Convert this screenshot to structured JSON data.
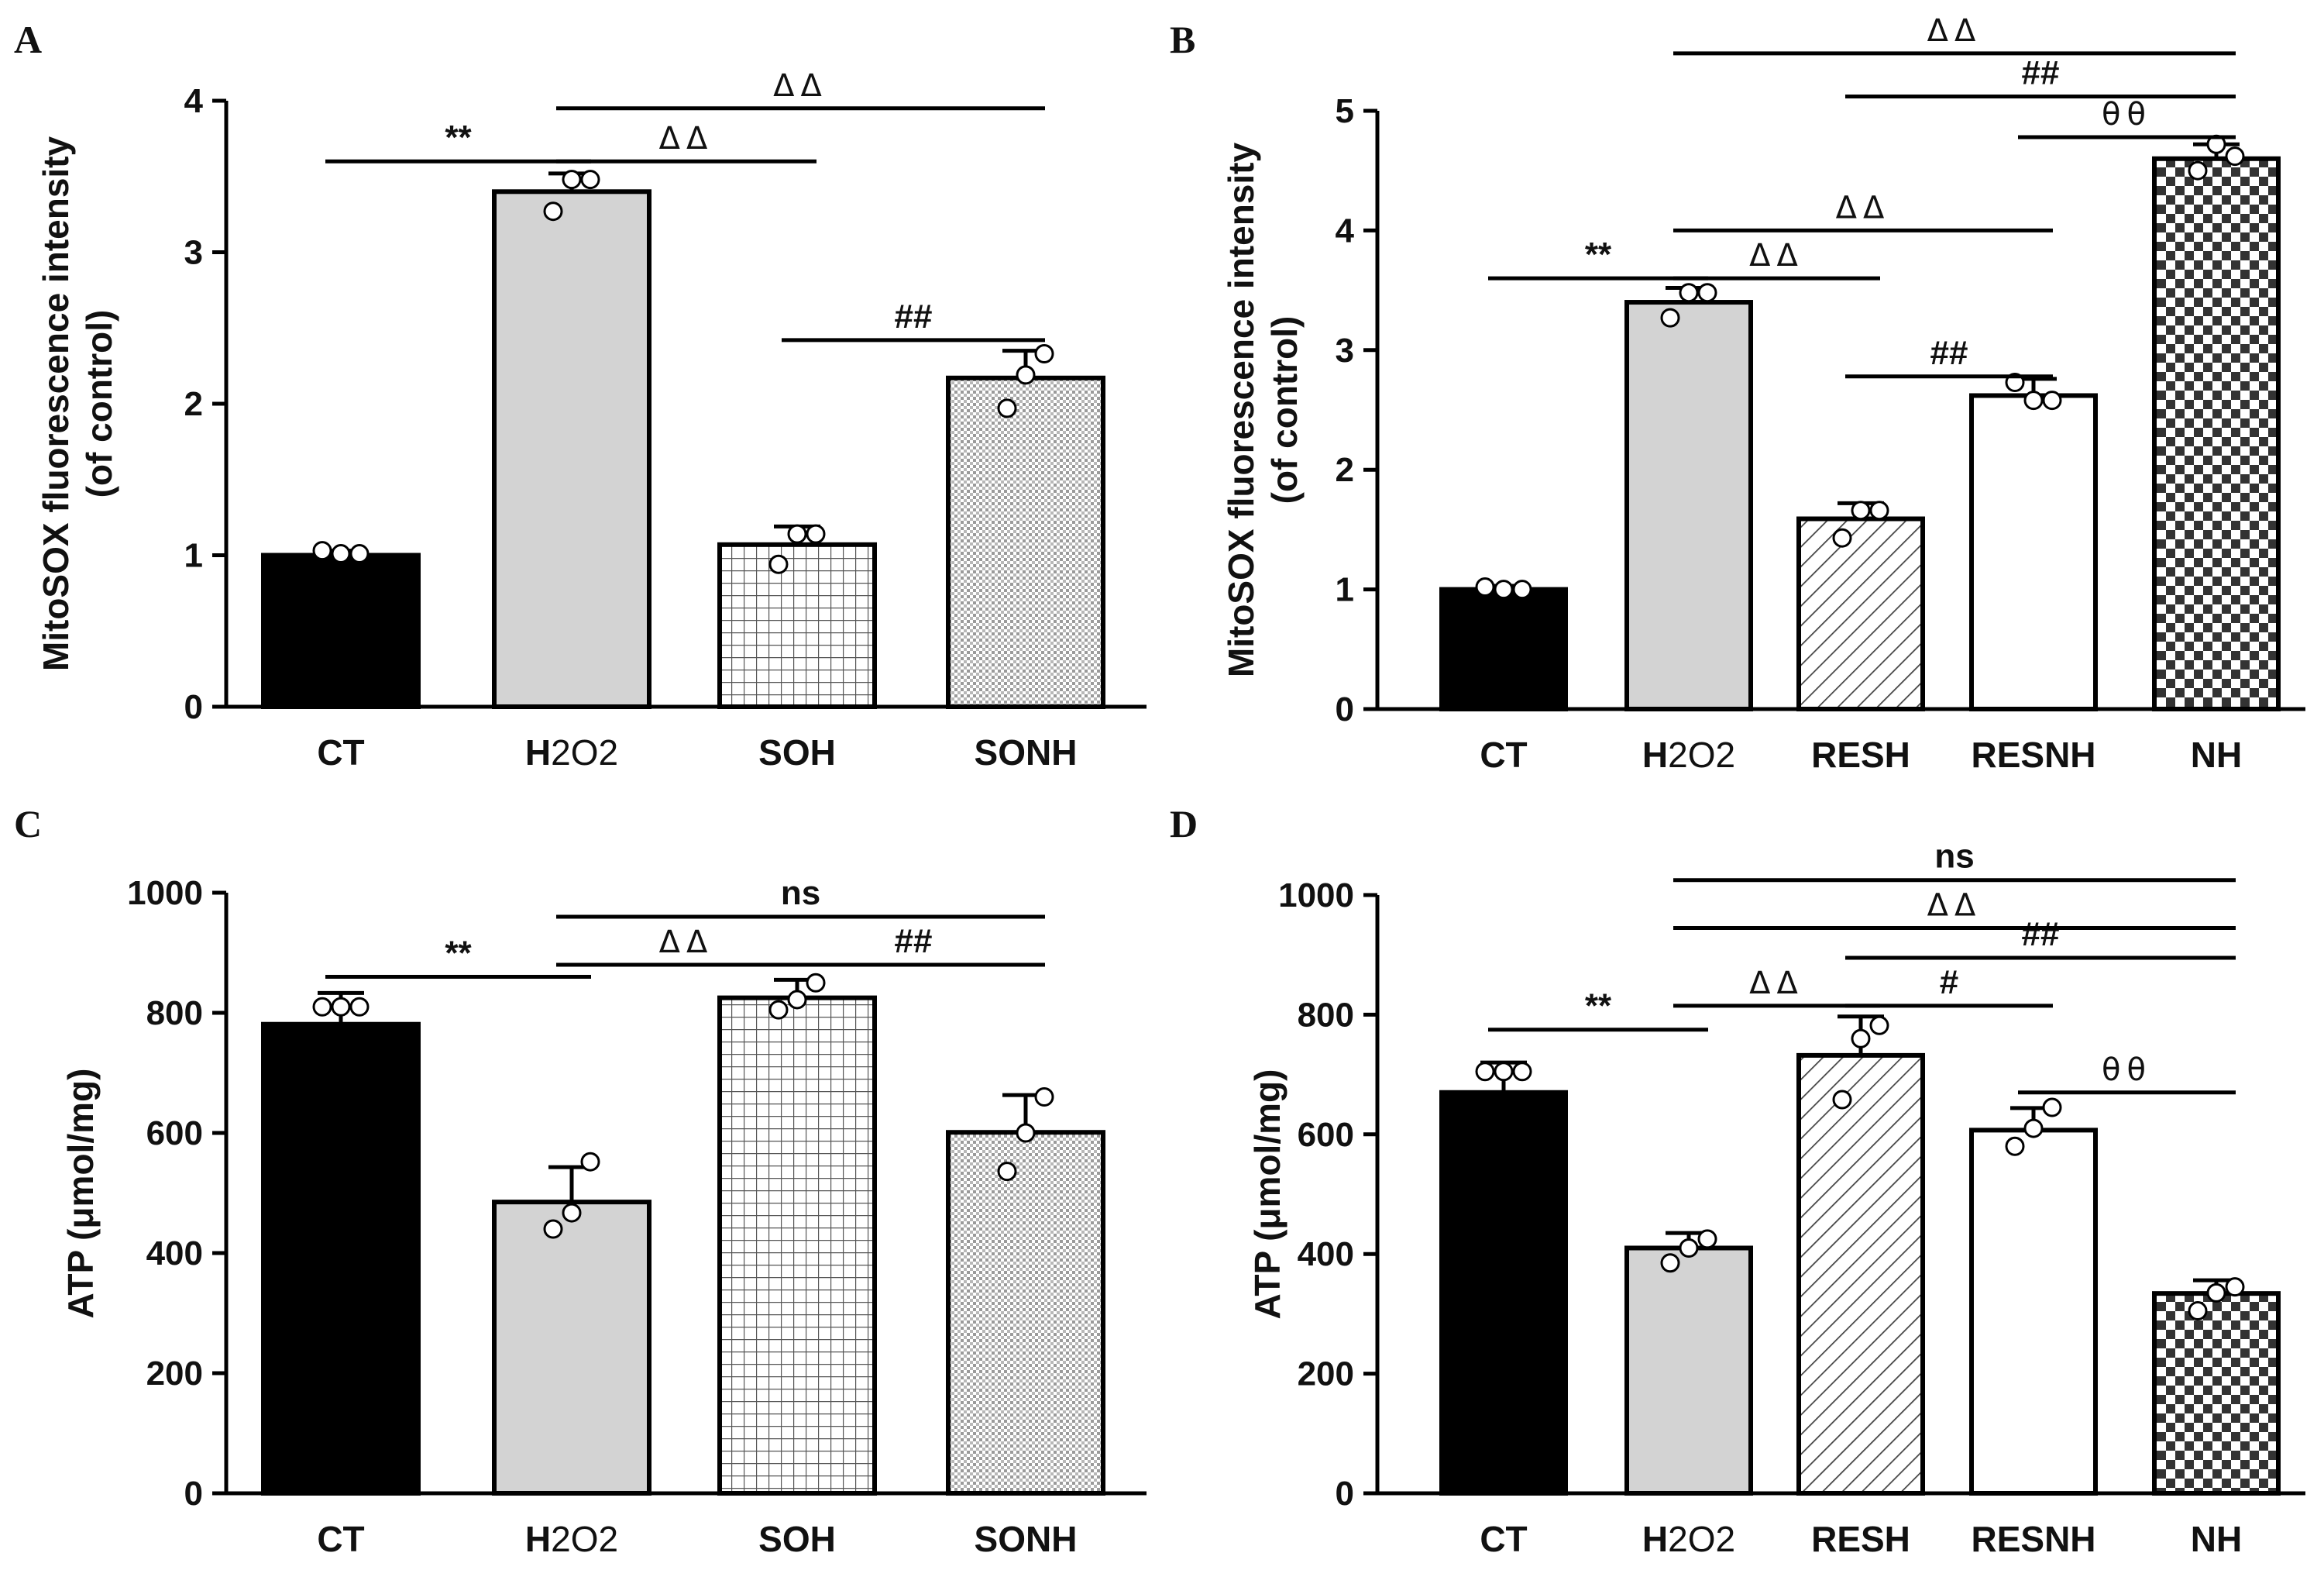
{
  "chart_data": [
    {
      "panel": "A",
      "type": "bar",
      "categories": [
        "CT",
        "H2O2",
        "SOH",
        "SONH"
      ],
      "values": [
        1.0,
        3.4,
        1.07,
        2.17
      ],
      "errors": [
        0.03,
        0.12,
        0.12,
        0.18
      ],
      "points": [
        [
          1.03,
          1.01,
          1.01
        ],
        [
          3.27,
          3.48,
          3.48
        ],
        [
          0.94,
          1.14,
          1.14
        ],
        [
          1.97,
          2.19,
          2.33
        ]
      ],
      "fills": [
        "solid-black",
        "solid-gray",
        "grid",
        "fine-dots"
      ],
      "title": "",
      "xlabel": "",
      "ylabel_line1": "MitoSOX fluorescence intensity",
      "ylabel_line2": "(of control)",
      "ylim": [
        0,
        4
      ],
      "yticks": [
        0,
        1,
        2,
        3,
        4
      ],
      "grid": false,
      "significance": [
        {
          "from": 0,
          "to": 1,
          "label": "**",
          "y": 3.6
        },
        {
          "from": 1,
          "to": 2,
          "label": "ΔΔ",
          "y": 3.6
        },
        {
          "from": 1,
          "to": 3,
          "label": "ΔΔ",
          "y": 3.95
        },
        {
          "from": 2,
          "to": 3,
          "label": "##",
          "y": 2.42
        }
      ]
    },
    {
      "panel": "B",
      "type": "bar",
      "categories": [
        "CT",
        "H2O2",
        "RESH",
        "RESNH",
        "NH"
      ],
      "values": [
        1.0,
        3.4,
        1.59,
        2.62,
        4.6
      ],
      "errors": [
        0.03,
        0.12,
        0.13,
        0.14,
        0.12
      ],
      "points": [
        [
          1.02,
          1.0,
          1.0
        ],
        [
          3.27,
          3.48,
          3.48
        ],
        [
          1.43,
          1.66,
          1.66
        ],
        [
          2.73,
          2.58,
          2.58
        ],
        [
          4.5,
          4.72,
          4.62
        ]
      ],
      "fills": [
        "solid-black",
        "solid-gray",
        "hatch",
        "white",
        "checker"
      ],
      "title": "",
      "xlabel": "",
      "ylabel_line1": "MitoSOX fluorescence intensity",
      "ylabel_line2": "(of control)",
      "ylim": [
        0,
        5
      ],
      "yticks": [
        0,
        1,
        2,
        3,
        4,
        5
      ],
      "grid": false,
      "significance": [
        {
          "from": 0,
          "to": 1,
          "label": "**",
          "y": 3.6
        },
        {
          "from": 1,
          "to": 2,
          "label": "ΔΔ",
          "y": 3.6
        },
        {
          "from": 1,
          "to": 3,
          "label": "ΔΔ",
          "y": 4.0
        },
        {
          "from": 2,
          "to": 3,
          "label": "##",
          "y": 2.78
        },
        {
          "from": 3,
          "to": 4,
          "label": "θθ",
          "y": 4.78
        },
        {
          "from": 2,
          "to": 4,
          "label": "##",
          "y": 5.12
        },
        {
          "from": 1,
          "to": 4,
          "label": "ΔΔ",
          "y": 5.48
        }
      ]
    },
    {
      "panel": "C",
      "type": "bar",
      "categories": [
        "CT",
        "H2O2",
        "SOH",
        "SONH"
      ],
      "values": [
        781,
        485,
        825,
        601
      ],
      "errors": [
        52,
        58,
        30,
        62
      ],
      "points": [
        [
          810,
          810,
          810
        ],
        [
          440,
          467,
          552
        ],
        [
          805,
          822,
          850
        ],
        [
          536,
          600,
          660
        ]
      ],
      "fills": [
        "solid-black",
        "solid-gray",
        "grid",
        "fine-dots"
      ],
      "title": "",
      "xlabel": "",
      "ylabel": "ATP (μmol/mg)",
      "ylim": [
        0,
        1000
      ],
      "yticks": [
        0,
        200,
        400,
        600,
        800,
        1000
      ],
      "grid": false,
      "significance": [
        {
          "from": 0,
          "to": 1,
          "label": "**",
          "y": 860
        },
        {
          "from": 1,
          "to": 2,
          "label": "ΔΔ",
          "y": 880
        },
        {
          "from": 2,
          "to": 3,
          "label": "##",
          "y": 880
        },
        {
          "from": 1,
          "to": 3,
          "label": "ns",
          "y": 960
        }
      ]
    },
    {
      "panel": "D",
      "type": "bar",
      "categories": [
        "CT",
        "H2O2",
        "RESH",
        "RESNH",
        "NH"
      ],
      "values": [
        670,
        410,
        732,
        607,
        334
      ],
      "errors": [
        50,
        25,
        65,
        37,
        22
      ],
      "points": [
        [
          705,
          705,
          705
        ],
        [
          385,
          410,
          425
        ],
        [
          658,
          760,
          782
        ],
        [
          580,
          610,
          645
        ],
        [
          305,
          335,
          345
        ]
      ],
      "fills": [
        "solid-black",
        "solid-gray",
        "hatch",
        "white",
        "checker"
      ],
      "title": "",
      "xlabel": "",
      "ylabel": "ATP (μmol/mg)",
      "ylim": [
        0,
        1000
      ],
      "yticks": [
        0,
        200,
        400,
        600,
        800,
        1000
      ],
      "grid": false,
      "significance": [
        {
          "from": 0,
          "to": 1,
          "label": "**",
          "y": 775
        },
        {
          "from": 1,
          "to": 2,
          "label": "ΔΔ",
          "y": 815
        },
        {
          "from": 2,
          "to": 3,
          "label": "#",
          "y": 815
        },
        {
          "from": 3,
          "to": 4,
          "label": "θθ",
          "y": 670
        },
        {
          "from": 2,
          "to": 4,
          "label": "##",
          "y": 895
        },
        {
          "from": 1,
          "to": 4,
          "label": "ΔΔ",
          "y": 945
        },
        {
          "from": 1,
          "to": 4,
          "label": "ns",
          "y": 1025
        }
      ]
    }
  ]
}
